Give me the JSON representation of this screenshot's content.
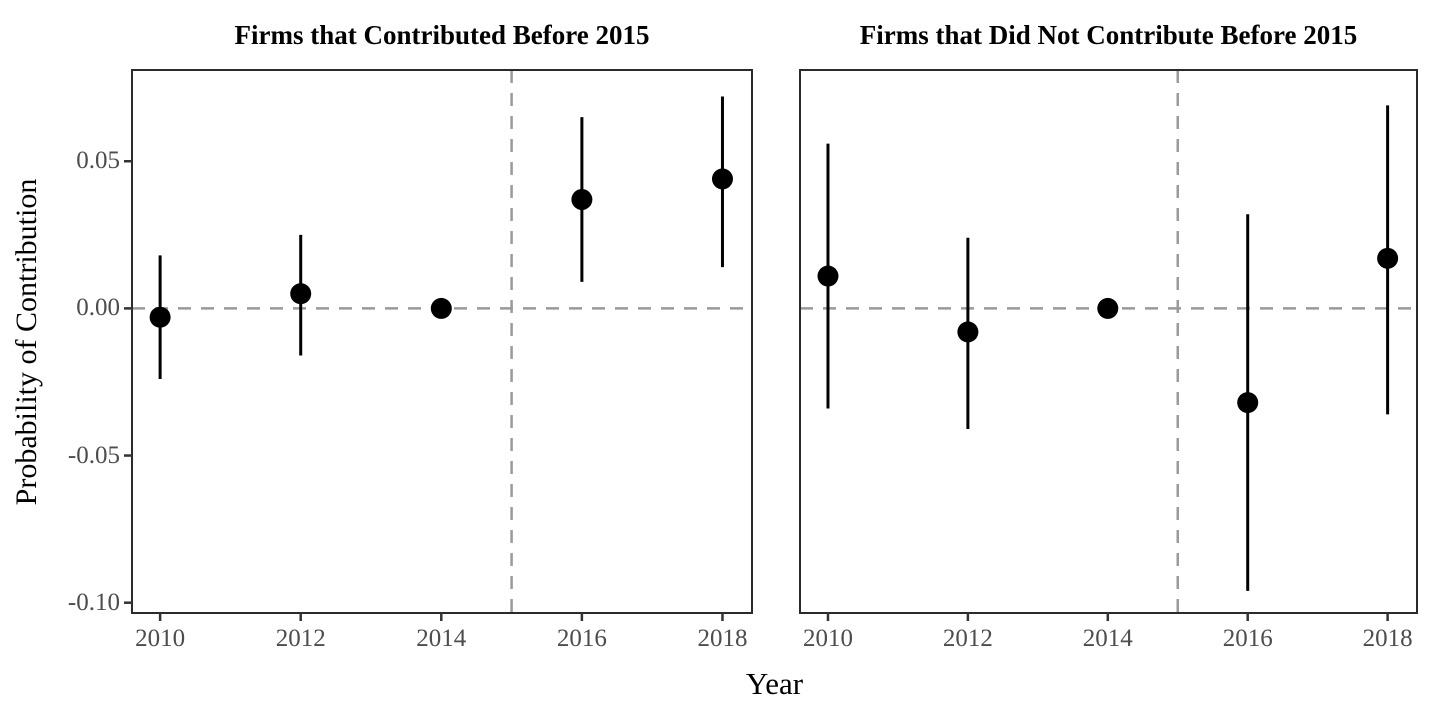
{
  "figure": {
    "x_axis_title": "Year",
    "y_axis_title": "Probability of Contribution",
    "background_color": "#ffffff"
  },
  "style": {
    "point_color": "#000000",
    "ci_line_color": "#000000",
    "reference_line_color": "#9a9a9a",
    "panel_border_color": "#2b2b2b",
    "tick_mark_color": "#333333",
    "tick_label_color": "#4d4d4d",
    "axis_title_color": "#000000"
  },
  "chart_data": [
    {
      "type": "scatter",
      "subtype": "pointrange",
      "title": "Firms that Contributed Before 2015",
      "xlabel": "Year",
      "ylabel": "Probability of Contribution",
      "x": [
        2010,
        2012,
        2014,
        2016,
        2018
      ],
      "x_tick_labels": [
        "2010",
        "2012",
        "2014",
        "2016",
        "2018"
      ],
      "estimates": [
        -0.003,
        0.005,
        0.0,
        0.037,
        0.044
      ],
      "ci_low": [
        -0.024,
        -0.016,
        0.0,
        0.009,
        0.014
      ],
      "ci_high": [
        0.018,
        0.025,
        0.0,
        0.065,
        0.072
      ],
      "yticks": [
        0.05,
        0.0,
        -0.05,
        -0.1
      ],
      "y_tick_labels": [
        "0.05",
        "0.00",
        "-0.05",
        "-0.10"
      ],
      "xlim": [
        2009.6,
        2018.42
      ],
      "ylim": [
        -0.1035,
        0.081
      ],
      "reference_lines": {
        "horizontal_y": 0,
        "vertical_x": 2015,
        "style": "dashed"
      },
      "grid": false,
      "legend": false
    },
    {
      "type": "scatter",
      "subtype": "pointrange",
      "title": "Firms that Did Not Contribute Before 2015",
      "xlabel": "Year",
      "ylabel": "Probability of Contribution",
      "x": [
        2010,
        2012,
        2014,
        2016,
        2018
      ],
      "x_tick_labels": [
        "2010",
        "2012",
        "2014",
        "2016",
        "2018"
      ],
      "estimates": [
        0.011,
        -0.008,
        0.0,
        -0.032,
        0.017
      ],
      "ci_low": [
        -0.034,
        -0.041,
        0.0,
        -0.096,
        -0.036
      ],
      "ci_high": [
        0.056,
        0.024,
        0.0,
        0.032,
        0.069
      ],
      "yticks": [
        0.05,
        0.0,
        -0.05,
        -0.1
      ],
      "y_tick_labels": [
        "0.05",
        "0.00",
        "-0.05",
        "-0.10"
      ],
      "xlim": [
        2009.6,
        2018.42
      ],
      "ylim": [
        -0.1035,
        0.081
      ],
      "reference_lines": {
        "horizontal_y": 0,
        "vertical_x": 2015,
        "style": "dashed"
      },
      "grid": false,
      "legend": false
    }
  ]
}
